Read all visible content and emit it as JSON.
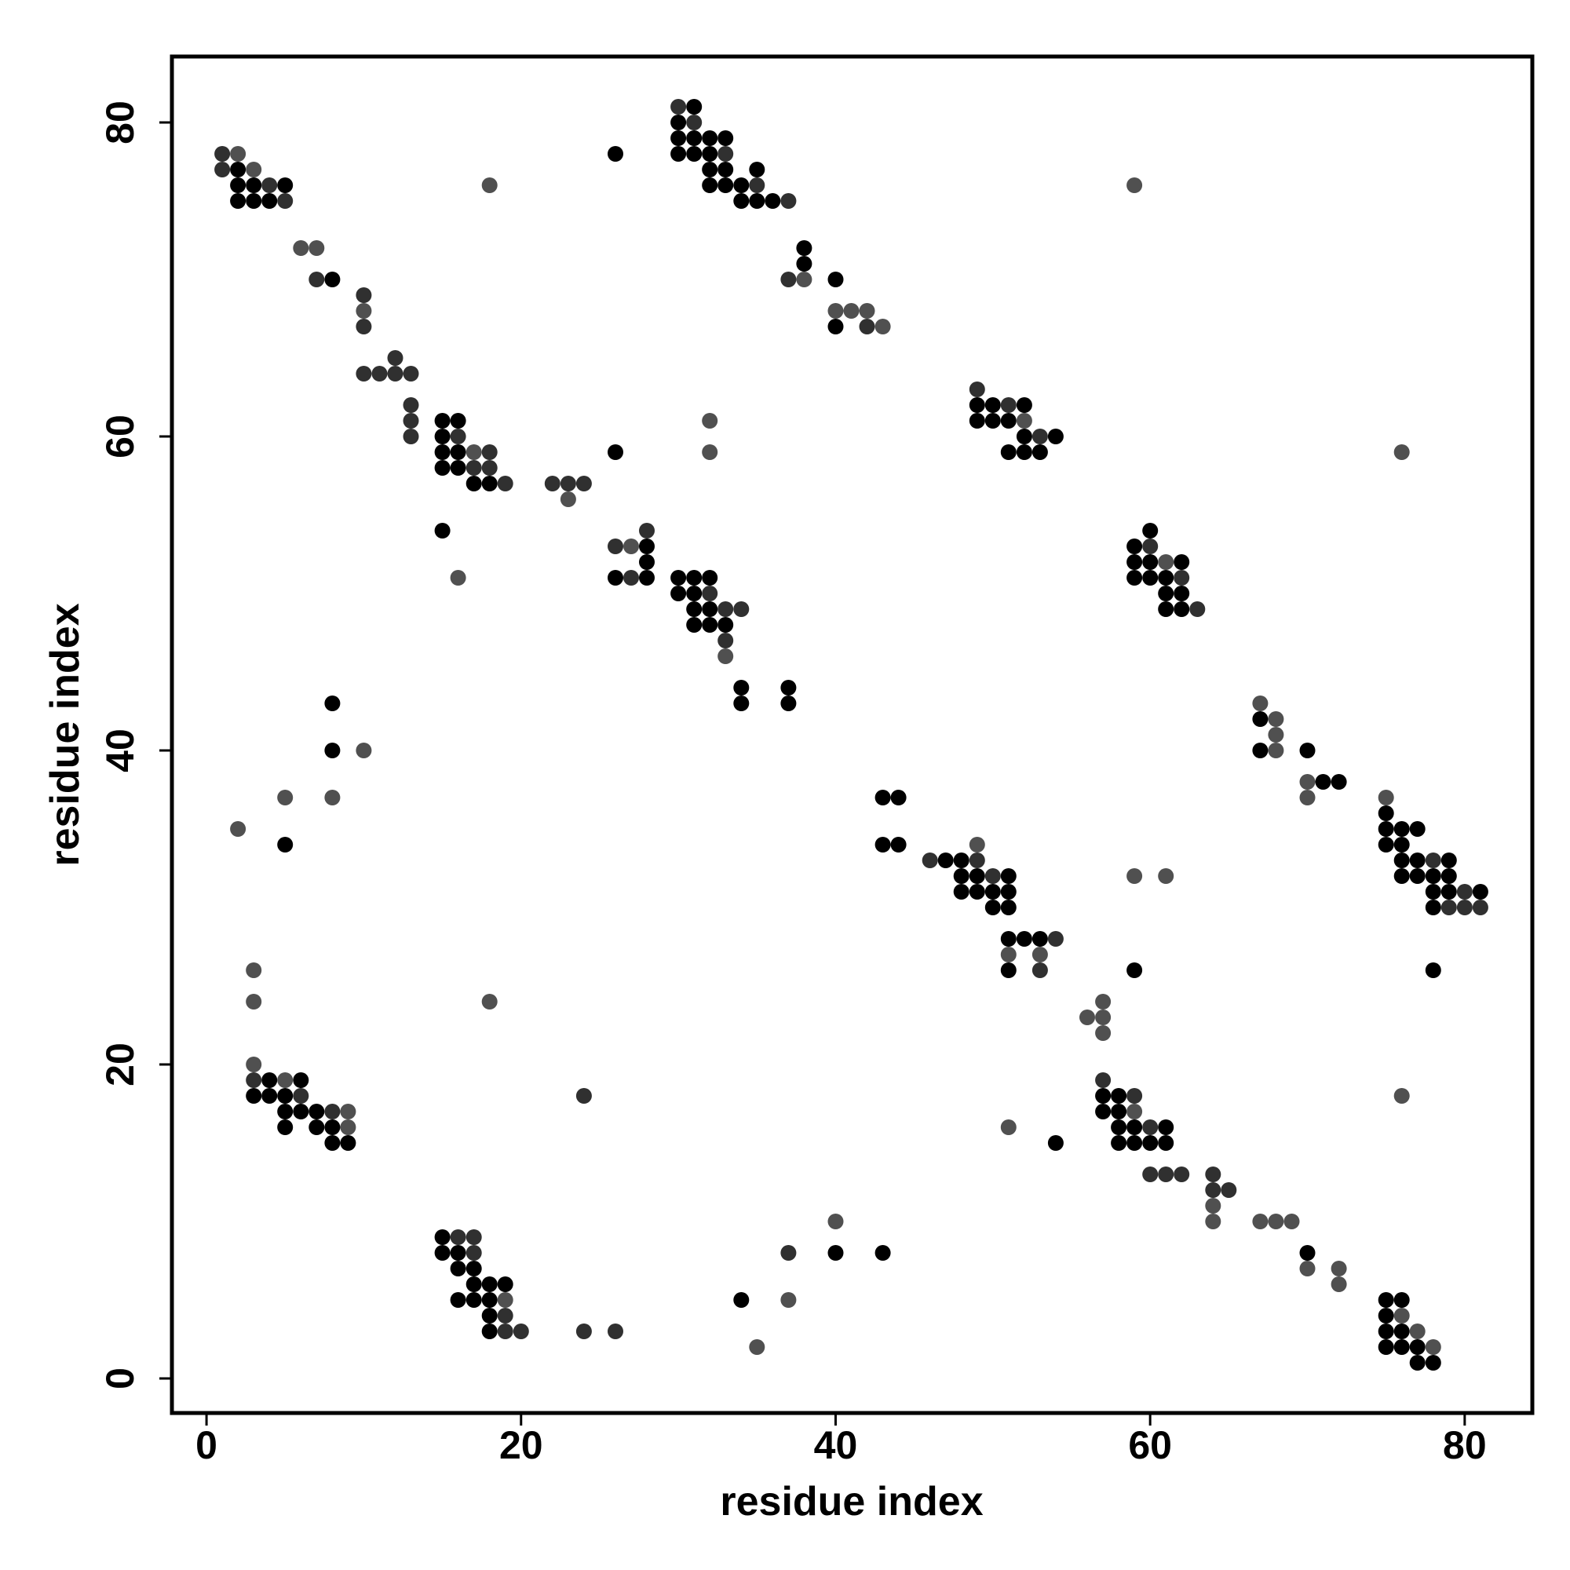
{
  "chart_data": {
    "type": "scatter",
    "title": "",
    "xlabel": "residue index",
    "ylabel": "residue index",
    "xlim": [
      -2.2,
      84.3
    ],
    "ylim": [
      -2.2,
      84.2
    ],
    "xticks": [
      0,
      20,
      40,
      60,
      80
    ],
    "yticks": [
      0,
      20,
      40,
      60,
      80
    ],
    "grid": false,
    "legend": "none",
    "colors": {
      "dark": "#000000",
      "mid": "#303030",
      "light": "#505050"
    },
    "points": [
      [
        1,
        78,
        1
      ],
      [
        2,
        78,
        2
      ],
      [
        1,
        77,
        1
      ],
      [
        2,
        77,
        0
      ],
      [
        3,
        77,
        2
      ],
      [
        2,
        76,
        0
      ],
      [
        3,
        76,
        0
      ],
      [
        4,
        76,
        1
      ],
      [
        5,
        76,
        0
      ],
      [
        2,
        75,
        0
      ],
      [
        3,
        75,
        0
      ],
      [
        4,
        75,
        0
      ],
      [
        5,
        75,
        1
      ],
      [
        6,
        72,
        2
      ],
      [
        7,
        72,
        2
      ],
      [
        7,
        70,
        1
      ],
      [
        8,
        70,
        0
      ],
      [
        10,
        69,
        1
      ],
      [
        10,
        68,
        2
      ],
      [
        10,
        67,
        1
      ],
      [
        10,
        64,
        1
      ],
      [
        11,
        64,
        1
      ],
      [
        12,
        64,
        1
      ],
      [
        13,
        64,
        1
      ],
      [
        12,
        65,
        1
      ],
      [
        13,
        62,
        1
      ],
      [
        13,
        61,
        1
      ],
      [
        13,
        60,
        1
      ],
      [
        15,
        61,
        0
      ],
      [
        16,
        61,
        0
      ],
      [
        15,
        60,
        0
      ],
      [
        16,
        60,
        1
      ],
      [
        15,
        59,
        0
      ],
      [
        16,
        59,
        0
      ],
      [
        17,
        59,
        2
      ],
      [
        18,
        59,
        1
      ],
      [
        15,
        58,
        0
      ],
      [
        16,
        58,
        0
      ],
      [
        17,
        58,
        1
      ],
      [
        18,
        58,
        1
      ],
      [
        17,
        57,
        0
      ],
      [
        18,
        57,
        0
      ],
      [
        19,
        57,
        1
      ],
      [
        22,
        57,
        1
      ],
      [
        23,
        57,
        1
      ],
      [
        24,
        57,
        1
      ],
      [
        23,
        56,
        2
      ],
      [
        15,
        54,
        0
      ],
      [
        16,
        51,
        2
      ],
      [
        26,
        59,
        0
      ],
      [
        26,
        78,
        0
      ],
      [
        18,
        76,
        2
      ],
      [
        26,
        53,
        1
      ],
      [
        27,
        53,
        2
      ],
      [
        28,
        53,
        0
      ],
      [
        28,
        54,
        1
      ],
      [
        28,
        52,
        0
      ],
      [
        26,
        51,
        0
      ],
      [
        27,
        51,
        1
      ],
      [
        28,
        51,
        0
      ],
      [
        30,
        51,
        0
      ],
      [
        31,
        51,
        0
      ],
      [
        32,
        51,
        0
      ],
      [
        30,
        50,
        0
      ],
      [
        31,
        50,
        0
      ],
      [
        32,
        50,
        1
      ],
      [
        31,
        49,
        0
      ],
      [
        32,
        49,
        0
      ],
      [
        33,
        49,
        1
      ],
      [
        34,
        49,
        1
      ],
      [
        31,
        48,
        0
      ],
      [
        32,
        48,
        0
      ],
      [
        33,
        48,
        0
      ],
      [
        33,
        47,
        1
      ],
      [
        33,
        46,
        2
      ],
      [
        34,
        44,
        0
      ],
      [
        34,
        43,
        0
      ],
      [
        37,
        44,
        0
      ],
      [
        37,
        43,
        0
      ],
      [
        30,
        81,
        1
      ],
      [
        31,
        81,
        0
      ],
      [
        30,
        80,
        0
      ],
      [
        31,
        80,
        1
      ],
      [
        30,
        79,
        0
      ],
      [
        31,
        79,
        0
      ],
      [
        32,
        79,
        0
      ],
      [
        33,
        79,
        0
      ],
      [
        30,
        78,
        0
      ],
      [
        31,
        78,
        0
      ],
      [
        32,
        78,
        0
      ],
      [
        33,
        78,
        1
      ],
      [
        32,
        77,
        0
      ],
      [
        33,
        77,
        0
      ],
      [
        35,
        77,
        0
      ],
      [
        32,
        76,
        0
      ],
      [
        33,
        76,
        0
      ],
      [
        34,
        76,
        0
      ],
      [
        35,
        76,
        1
      ],
      [
        34,
        75,
        0
      ],
      [
        35,
        75,
        0
      ],
      [
        36,
        75,
        0
      ],
      [
        37,
        75,
        1
      ],
      [
        38,
        72,
        0
      ],
      [
        38,
        71,
        0
      ],
      [
        37,
        70,
        1
      ],
      [
        38,
        70,
        2
      ],
      [
        40,
        70,
        0
      ],
      [
        40,
        68,
        2
      ],
      [
        41,
        68,
        2
      ],
      [
        42,
        68,
        2
      ],
      [
        40,
        67,
        0
      ],
      [
        42,
        67,
        1
      ],
      [
        43,
        67,
        2
      ],
      [
        32,
        61,
        2
      ],
      [
        32,
        59,
        2
      ],
      [
        49,
        63,
        1
      ],
      [
        49,
        62,
        0
      ],
      [
        50,
        62,
        0
      ],
      [
        51,
        62,
        1
      ],
      [
        52,
        62,
        0
      ],
      [
        49,
        61,
        0
      ],
      [
        50,
        61,
        0
      ],
      [
        51,
        61,
        0
      ],
      [
        52,
        61,
        2
      ],
      [
        52,
        60,
        0
      ],
      [
        53,
        60,
        1
      ],
      [
        54,
        60,
        0
      ],
      [
        51,
        59,
        0
      ],
      [
        52,
        59,
        0
      ],
      [
        53,
        59,
        0
      ],
      [
        59,
        76,
        2
      ],
      [
        76,
        59,
        2
      ],
      [
        60,
        54,
        0
      ],
      [
        59,
        53,
        0
      ],
      [
        60,
        53,
        1
      ],
      [
        59,
        52,
        0
      ],
      [
        60,
        52,
        0
      ],
      [
        61,
        52,
        2
      ],
      [
        62,
        52,
        0
      ],
      [
        59,
        51,
        0
      ],
      [
        60,
        51,
        0
      ],
      [
        61,
        51,
        0
      ],
      [
        62,
        51,
        1
      ],
      [
        61,
        50,
        0
      ],
      [
        62,
        50,
        0
      ],
      [
        61,
        49,
        0
      ],
      [
        62,
        49,
        0
      ],
      [
        63,
        49,
        1
      ],
      [
        67,
        43,
        2
      ],
      [
        67,
        42,
        0
      ],
      [
        68,
        42,
        2
      ],
      [
        68,
        41,
        2
      ],
      [
        67,
        40,
        0
      ],
      [
        68,
        40,
        2
      ],
      [
        70,
        40,
        0
      ],
      [
        70,
        38,
        2
      ],
      [
        71,
        38,
        0
      ],
      [
        72,
        38,
        0
      ],
      [
        70,
        37,
        2
      ],
      [
        75,
        37,
        2
      ],
      [
        75,
        36,
        0
      ],
      [
        75,
        35,
        0
      ],
      [
        76,
        35,
        0
      ],
      [
        77,
        35,
        0
      ],
      [
        75,
        34,
        0
      ],
      [
        76,
        34,
        0
      ],
      [
        76,
        33,
        0
      ],
      [
        77,
        33,
        0
      ],
      [
        78,
        33,
        1
      ],
      [
        79,
        33,
        0
      ],
      [
        76,
        32,
        0
      ],
      [
        77,
        32,
        0
      ],
      [
        78,
        32,
        0
      ],
      [
        79,
        32,
        0
      ],
      [
        78,
        31,
        0
      ],
      [
        79,
        31,
        0
      ],
      [
        80,
        31,
        1
      ],
      [
        81,
        31,
        0
      ],
      [
        78,
        30,
        0
      ],
      [
        79,
        30,
        1
      ],
      [
        80,
        30,
        1
      ],
      [
        81,
        30,
        1
      ],
      [
        59,
        32,
        2
      ],
      [
        61,
        32,
        2
      ],
      [
        59,
        26,
        0
      ],
      [
        78,
        26,
        0
      ],
      [
        43,
        37,
        0
      ],
      [
        44,
        37,
        0
      ],
      [
        43,
        34,
        0
      ],
      [
        44,
        34,
        0
      ],
      [
        46,
        33,
        1
      ],
      [
        47,
        33,
        0
      ],
      [
        48,
        33,
        0
      ],
      [
        49,
        33,
        1
      ],
      [
        49,
        34,
        2
      ],
      [
        48,
        32,
        0
      ],
      [
        49,
        32,
        0
      ],
      [
        50,
        32,
        1
      ],
      [
        51,
        32,
        0
      ],
      [
        48,
        31,
        0
      ],
      [
        49,
        31,
        0
      ],
      [
        50,
        31,
        0
      ],
      [
        51,
        31,
        0
      ],
      [
        50,
        30,
        0
      ],
      [
        51,
        30,
        0
      ],
      [
        51,
        28,
        0
      ],
      [
        52,
        28,
        0
      ],
      [
        53,
        28,
        0
      ],
      [
        54,
        28,
        1
      ],
      [
        51,
        27,
        2
      ],
      [
        53,
        27,
        2
      ],
      [
        51,
        26,
        0
      ],
      [
        53,
        26,
        1
      ],
      [
        56,
        23,
        2
      ],
      [
        57,
        23,
        2
      ],
      [
        57,
        24,
        2
      ],
      [
        57,
        22,
        2
      ],
      [
        57,
        19,
        1
      ],
      [
        57,
        18,
        0
      ],
      [
        58,
        18,
        0
      ],
      [
        59,
        18,
        1
      ],
      [
        57,
        17,
        0
      ],
      [
        58,
        17,
        0
      ],
      [
        59,
        17,
        2
      ],
      [
        58,
        16,
        0
      ],
      [
        59,
        16,
        0
      ],
      [
        60,
        16,
        1
      ],
      [
        61,
        16,
        0
      ],
      [
        58,
        15,
        0
      ],
      [
        59,
        15,
        0
      ],
      [
        60,
        15,
        0
      ],
      [
        61,
        15,
        0
      ],
      [
        51,
        16,
        2
      ],
      [
        54,
        15,
        0
      ],
      [
        76,
        18,
        2
      ],
      [
        60,
        13,
        1
      ],
      [
        61,
        13,
        1
      ],
      [
        62,
        13,
        1
      ],
      [
        64,
        13,
        1
      ],
      [
        64,
        12,
        1
      ],
      [
        65,
        12,
        1
      ],
      [
        64,
        11,
        2
      ],
      [
        64,
        10,
        2
      ],
      [
        67,
        10,
        2
      ],
      [
        68,
        10,
        2
      ],
      [
        69,
        10,
        2
      ],
      [
        70,
        8,
        0
      ],
      [
        70,
        7,
        2
      ],
      [
        72,
        7,
        2
      ],
      [
        72,
        6,
        2
      ],
      [
        75,
        5,
        0
      ],
      [
        76,
        5,
        0
      ],
      [
        75,
        4,
        0
      ],
      [
        76,
        4,
        2
      ],
      [
        75,
        3,
        0
      ],
      [
        76,
        3,
        0
      ],
      [
        77,
        3,
        2
      ],
      [
        75,
        2,
        0
      ],
      [
        76,
        2,
        0
      ],
      [
        77,
        2,
        0
      ],
      [
        78,
        2,
        2
      ],
      [
        77,
        1,
        0
      ],
      [
        78,
        1,
        0
      ],
      [
        2,
        35,
        2
      ],
      [
        5,
        37,
        2
      ],
      [
        5,
        34,
        0
      ],
      [
        8,
        43,
        0
      ],
      [
        8,
        40,
        0
      ],
      [
        10,
        40,
        2
      ],
      [
        8,
        37,
        2
      ],
      [
        3,
        26,
        2
      ],
      [
        3,
        24,
        2
      ],
      [
        18,
        24,
        2
      ],
      [
        3,
        20,
        2
      ],
      [
        3,
        19,
        1
      ],
      [
        4,
        19,
        0
      ],
      [
        5,
        19,
        2
      ],
      [
        6,
        19,
        0
      ],
      [
        3,
        18,
        0
      ],
      [
        4,
        18,
        0
      ],
      [
        5,
        18,
        0
      ],
      [
        6,
        18,
        1
      ],
      [
        5,
        17,
        0
      ],
      [
        6,
        17,
        0
      ],
      [
        7,
        17,
        0
      ],
      [
        8,
        17,
        1
      ],
      [
        9,
        17,
        2
      ],
      [
        5,
        16,
        0
      ],
      [
        7,
        16,
        0
      ],
      [
        8,
        16,
        0
      ],
      [
        9,
        16,
        2
      ],
      [
        8,
        15,
        0
      ],
      [
        9,
        15,
        0
      ],
      [
        24,
        18,
        1
      ],
      [
        15,
        9,
        0
      ],
      [
        16,
        9,
        1
      ],
      [
        17,
        9,
        1
      ],
      [
        15,
        8,
        0
      ],
      [
        16,
        8,
        0
      ],
      [
        17,
        8,
        1
      ],
      [
        16,
        7,
        0
      ],
      [
        17,
        7,
        0
      ],
      [
        17,
        6,
        0
      ],
      [
        18,
        6,
        0
      ],
      [
        19,
        6,
        0
      ],
      [
        16,
        5,
        0
      ],
      [
        17,
        5,
        0
      ],
      [
        18,
        5,
        0
      ],
      [
        19,
        5,
        2
      ],
      [
        18,
        4,
        0
      ],
      [
        19,
        4,
        1
      ],
      [
        18,
        3,
        0
      ],
      [
        19,
        3,
        1
      ],
      [
        20,
        3,
        1
      ],
      [
        24,
        3,
        1
      ],
      [
        26,
        3,
        1
      ],
      [
        34,
        5,
        0
      ],
      [
        37,
        5,
        2
      ],
      [
        35,
        2,
        2
      ],
      [
        37,
        8,
        1
      ],
      [
        40,
        10,
        2
      ],
      [
        40,
        8,
        0
      ],
      [
        43,
        8,
        0
      ]
    ]
  }
}
